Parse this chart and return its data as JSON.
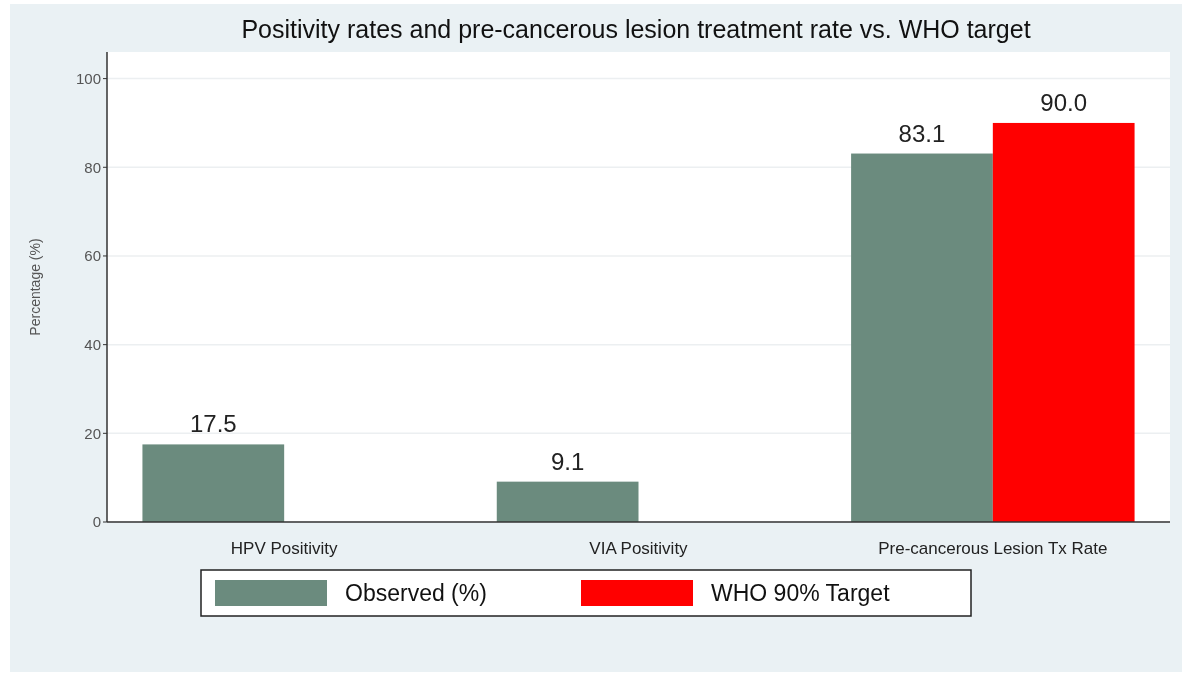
{
  "chart_data": {
    "type": "bar",
    "title": "Positivity rates and pre-cancerous lesion treatment rate vs. WHO target",
    "ylabel": "Percentage (%)",
    "categories": [
      "HPV Positivity",
      "VIA Positivity",
      "Pre-cancerous Lesion Tx Rate"
    ],
    "series": [
      {
        "name": "Observed (%)",
        "color": "#6b8b7e",
        "values": [
          17.5,
          9.1,
          83.1
        ],
        "value_labels": [
          "17.5",
          "9.1",
          "83.1"
        ]
      },
      {
        "name": "WHO 90% Target",
        "color": "#ff0000",
        "values": [
          null,
          null,
          90
        ],
        "value_labels": [
          null,
          null,
          "90.0"
        ]
      }
    ],
    "ylim": [
      0,
      106
    ],
    "yticks": [
      0,
      20,
      40,
      60,
      80,
      100
    ],
    "grid": "y",
    "legend": "bottom"
  }
}
